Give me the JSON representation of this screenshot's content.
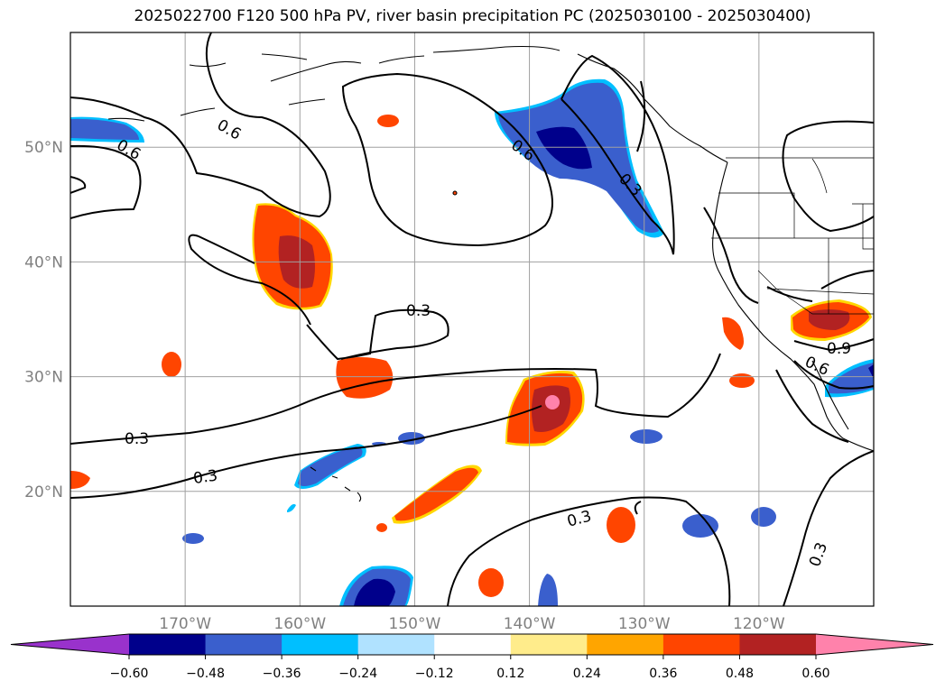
{
  "title": "2025022700 F120 500 hPa PV, river basin precipitation PC (2025030100 - 2025030400)",
  "map": {
    "lon_range": [
      -180,
      -110
    ],
    "lat_range": [
      10,
      60
    ],
    "lat_ticks": [
      {
        "value": 50,
        "label": "50°N"
      },
      {
        "value": 40,
        "label": "40°N"
      },
      {
        "value": 30,
        "label": "30°N"
      },
      {
        "value": 20,
        "label": "20°N"
      }
    ],
    "lon_ticks": [
      {
        "value": -170,
        "label": "170°W"
      },
      {
        "value": -160,
        "label": "160°W"
      },
      {
        "value": -150,
        "label": "150°W"
      },
      {
        "value": -140,
        "label": "140°W"
      },
      {
        "value": -130,
        "label": "130°W"
      },
      {
        "value": -120,
        "label": "120°W"
      }
    ],
    "pv_contour_labels": [
      "0.6",
      "0.6",
      "0.6",
      "0.3",
      "0.3",
      "0.3",
      "0.3",
      "0.3",
      "0.3",
      "0.9",
      "0.6"
    ]
  },
  "colorbar": {
    "colors": [
      "#9932cc",
      "#00008b",
      "#3a5fcd",
      "#00bfff",
      "#b0e2ff",
      "#ffffff",
      "#ffec8b",
      "#ffa500",
      "#ff4500",
      "#b22222",
      "#ff82ab"
    ],
    "labels": [
      "−0.60",
      "−0.48",
      "−0.36",
      "−0.24",
      "−0.12",
      "0.12",
      "0.24",
      "0.36",
      "0.48",
      "0.60"
    ]
  }
}
